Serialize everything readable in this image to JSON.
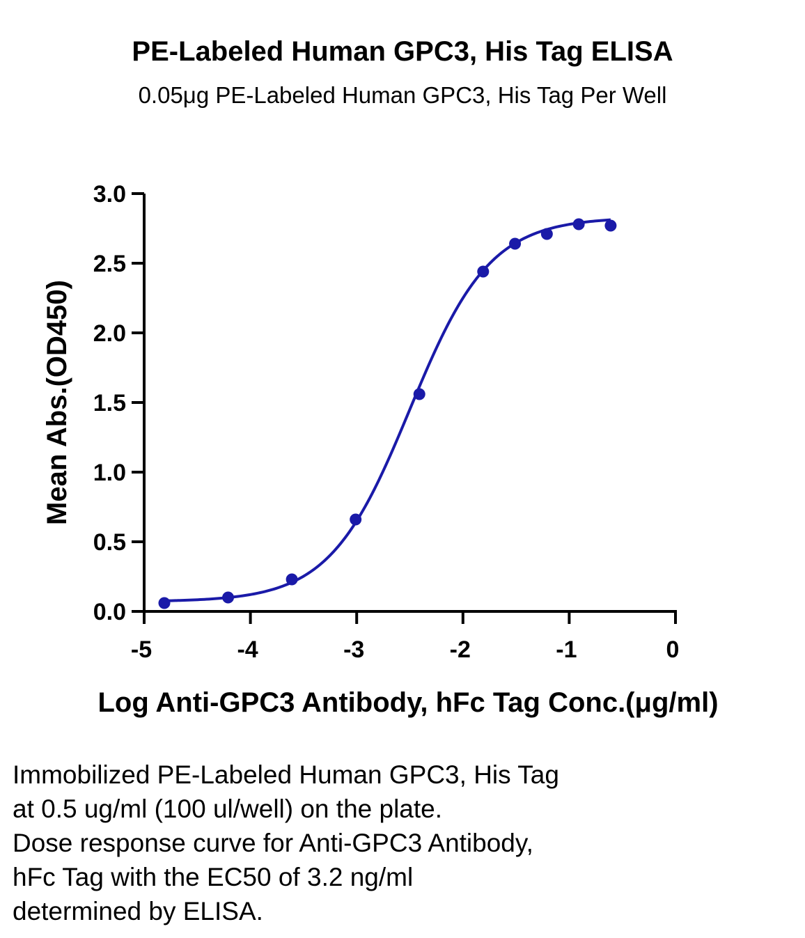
{
  "header": {
    "title": "PE-Labeled Human GPC3, His Tag ELISA",
    "subtitle": "0.05μg PE-Labeled Human GPC3, His Tag Per Well"
  },
  "chart_data": {
    "type": "scatter",
    "title": "PE-Labeled Human GPC3, His Tag ELISA",
    "subtitle": "0.05μg PE-Labeled Human GPC3, His Tag Per Well",
    "xlabel": "Log Anti-GPC3 Antibody, hFc Tag Conc.(μg/ml)",
    "ylabel": "Mean Abs.(OD450)",
    "xlim": [
      -5,
      0
    ],
    "ylim": [
      0,
      3.0
    ],
    "xticks": [
      -5,
      -4,
      -3,
      -2,
      -1,
      0
    ],
    "xtick_labels": [
      "-5",
      "-4",
      "-3",
      "-2",
      "-1",
      "0"
    ],
    "yticks": [
      0,
      0.5,
      1.0,
      1.5,
      2.0,
      2.5,
      3.0
    ],
    "ytick_labels": [
      "0.0",
      "0.5",
      "1.0",
      "1.5",
      "2.0",
      "2.5",
      "3.0"
    ],
    "grid": false,
    "series": [
      {
        "color": "#1a1aa8",
        "x": [
          -4.81,
          -4.21,
          -3.61,
          -3.01,
          -2.41,
          -1.81,
          -1.51,
          -1.21,
          -0.91,
          -0.61
        ],
        "y": [
          0.06,
          0.1,
          0.23,
          0.66,
          1.56,
          2.44,
          2.64,
          2.71,
          2.78,
          2.77
        ],
        "fit": {
          "model": "4PL",
          "bottom": 0.07,
          "top": 2.83,
          "logEC50": -2.5,
          "hill": 1.15,
          "x_range": [
            -4.81,
            -0.61
          ]
        }
      }
    ]
  },
  "caption": {
    "lines": [
      "Immobilized PE-Labeled Human GPC3, His Tag",
      "at 0.5 ug/ml (100 ul/well) on the plate.",
      "Dose response curve for Anti-GPC3 Antibody,",
      "hFc Tag with the EC50 of 3.2 ng/ml",
      "determined by ELISA."
    ]
  }
}
